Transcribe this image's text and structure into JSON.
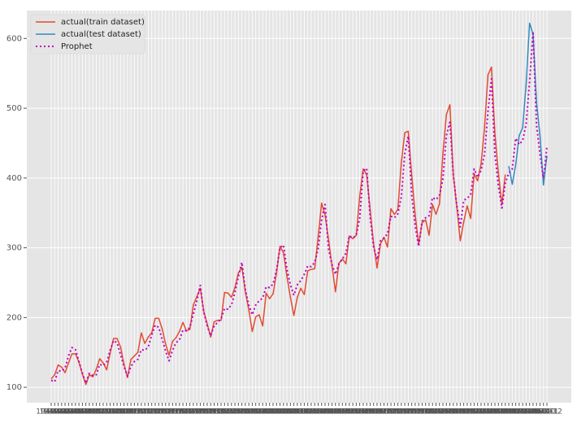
{
  "chart_data": {
    "type": "line",
    "categories": [
      "1949-01",
      "1949-02",
      "1949-03",
      "1949-04",
      "1949-05",
      "1949-06",
      "1949-07",
      "1949-08",
      "1949-09",
      "1949-10",
      "1949-11",
      "1949-12",
      "1950-01",
      "1950-02",
      "1950-03",
      "1950-04",
      "1950-05",
      "1950-06",
      "1950-07",
      "1950-08",
      "1950-09",
      "1950-10",
      "1950-11",
      "1950-12",
      "1951-01",
      "1951-02",
      "1951-03",
      "1951-04",
      "1951-05",
      "1951-06",
      "1951-07",
      "1951-08",
      "1951-09",
      "1951-10",
      "1951-11",
      "1951-12",
      "1952-01",
      "1952-02",
      "1952-03",
      "1952-04",
      "1952-05",
      "1952-06",
      "1952-07",
      "1952-08",
      "1952-09",
      "1952-10",
      "1952-11",
      "1952-12",
      "1953-01",
      "1953-02",
      "1953-03",
      "1953-04",
      "1953-05",
      "1953-06",
      "1953-07",
      "1953-08",
      "1953-09",
      "1953-10",
      "1953-11",
      "1953-12",
      "1954-01",
      "1954-02",
      "1954-03",
      "1954-04",
      "1954-05",
      "1954-06",
      "1954-07",
      "1954-08",
      "1954-09",
      "1954-10",
      "1954-11",
      "1954-12",
      "1955-01",
      "1955-02",
      "1955-03",
      "1955-04",
      "1955-05",
      "1955-06",
      "1955-07",
      "1955-08",
      "1955-09",
      "1955-10",
      "1955-11",
      "1955-12",
      "1956-01",
      "1956-02",
      "1956-03",
      "1956-04",
      "1956-05",
      "1956-06",
      "1956-07",
      "1956-08",
      "1956-09",
      "1956-10",
      "1956-11",
      "1956-12",
      "1957-01",
      "1957-02",
      "1957-03",
      "1957-04",
      "1957-05",
      "1957-06",
      "1957-07",
      "1957-08",
      "1957-09",
      "1957-10",
      "1957-11",
      "1957-12",
      "1958-01",
      "1958-02",
      "1958-03",
      "1958-04",
      "1958-05",
      "1958-06",
      "1958-07",
      "1958-08",
      "1958-09",
      "1958-10",
      "1958-11",
      "1958-12",
      "1959-01",
      "1959-02",
      "1959-03",
      "1959-04",
      "1959-05",
      "1959-06",
      "1959-07",
      "1959-08",
      "1959-09",
      "1959-10",
      "1959-11",
      "1959-12",
      "1960-01",
      "1960-02",
      "1960-03",
      "1960-04",
      "1960-05",
      "1960-06",
      "1960-07",
      "1960-08",
      "1960-09",
      "1960-10",
      "1960-11",
      "1960-12"
    ],
    "series": [
      {
        "name": "actual(train dataset)",
        "color": "#e24a33",
        "linestyle": "solid",
        "values": [
          112,
          118,
          132,
          129,
          121,
          135,
          148,
          148,
          136,
          119,
          104,
          118,
          115,
          126,
          141,
          135,
          125,
          149,
          170,
          170,
          158,
          133,
          114,
          140,
          145,
          150,
          178,
          163,
          172,
          178,
          199,
          199,
          184,
          162,
          146,
          166,
          171,
          180,
          193,
          181,
          183,
          218,
          230,
          242,
          209,
          191,
          172,
          194,
          196,
          196,
          236,
          235,
          229,
          243,
          264,
          272,
          237,
          211,
          180,
          201,
          204,
          188,
          235,
          227,
          234,
          264,
          302,
          293,
          259,
          229,
          203,
          229,
          242,
          233,
          267,
          269,
          270,
          315,
          364,
          347,
          312,
          274,
          237,
          278,
          284,
          277,
          317,
          313,
          318,
          374,
          413,
          405,
          355,
          306,
          271,
          306,
          315,
          301,
          356,
          348,
          355,
          422,
          465,
          467,
          404,
          347,
          305,
          336,
          340,
          318,
          362,
          348,
          363,
          435,
          491,
          505,
          404,
          359,
          310,
          337,
          360,
          342,
          406,
          396,
          420,
          472,
          548,
          559,
          463,
          407,
          362,
          405,
          null,
          null,
          null,
          null,
          null,
          null,
          null,
          null,
          null,
          null,
          null,
          null
        ]
      },
      {
        "name": "actual(test dataset)",
        "color": "#348abd",
        "linestyle": "solid",
        "values": [
          null,
          null,
          null,
          null,
          null,
          null,
          null,
          null,
          null,
          null,
          null,
          null,
          null,
          null,
          null,
          null,
          null,
          null,
          null,
          null,
          null,
          null,
          null,
          null,
          null,
          null,
          null,
          null,
          null,
          null,
          null,
          null,
          null,
          null,
          null,
          null,
          null,
          null,
          null,
          null,
          null,
          null,
          null,
          null,
          null,
          null,
          null,
          null,
          null,
          null,
          null,
          null,
          null,
          null,
          null,
          null,
          null,
          null,
          null,
          null,
          null,
          null,
          null,
          null,
          null,
          null,
          null,
          null,
          null,
          null,
          null,
          null,
          null,
          null,
          null,
          null,
          null,
          null,
          null,
          null,
          null,
          null,
          null,
          null,
          null,
          null,
          null,
          null,
          null,
          null,
          null,
          null,
          null,
          null,
          null,
          null,
          null,
          null,
          null,
          null,
          null,
          null,
          null,
          null,
          null,
          null,
          null,
          null,
          null,
          null,
          null,
          null,
          null,
          null,
          null,
          null,
          null,
          null,
          null,
          null,
          null,
          null,
          null,
          null,
          null,
          null,
          null,
          null,
          null,
          null,
          null,
          null,
          417,
          391,
          419,
          461,
          472,
          535,
          622,
          606,
          508,
          461,
          390,
          432
        ]
      },
      {
        "name": "Prophet",
        "color": "#bf00bf",
        "linestyle": "dotted",
        "values": [
          110,
          108,
          124,
          123,
          128,
          145,
          157,
          154,
          137,
          120,
          106,
          120,
          117,
          118,
          133,
          131,
          136,
          153,
          167,
          164,
          147,
          130,
          116,
          130,
          137,
          140,
          154,
          153,
          158,
          175,
          189,
          186,
          169,
          152,
          138,
          153,
          164,
          168,
          182,
          181,
          186,
          205,
          224,
          246,
          208,
          188,
          174,
          188,
          193,
          198,
          213,
          212,
          218,
          236,
          259,
          279,
          240,
          218,
          204,
          218,
          224,
          228,
          244,
          243,
          248,
          268,
          300,
          304,
          269,
          247,
          232,
          247,
          253,
          262,
          274,
          273,
          279,
          298,
          340,
          362,
          298,
          276,
          262,
          277,
          284,
          292,
          317,
          314,
          318,
          343,
          410,
          414,
          344,
          301,
          283,
          310,
          314,
          320,
          345,
          343,
          349,
          373,
          435,
          460,
          375,
          331,
          302,
          338,
          343,
          346,
          372,
          369,
          375,
          399,
          461,
          480,
          404,
          360,
          330,
          368,
          371,
          376,
          413,
          401,
          411,
          434,
          496,
          542,
          434,
          389,
          357,
          393,
          407,
          413,
          457,
          448,
          454,
          477,
          538,
          610,
          476,
          434,
          400,
          445
        ]
      }
    ],
    "ylim": [
      78,
      640
    ],
    "yticks": [
      100,
      200,
      300,
      400,
      500,
      600
    ],
    "grid": true,
    "legend": "upper left"
  }
}
